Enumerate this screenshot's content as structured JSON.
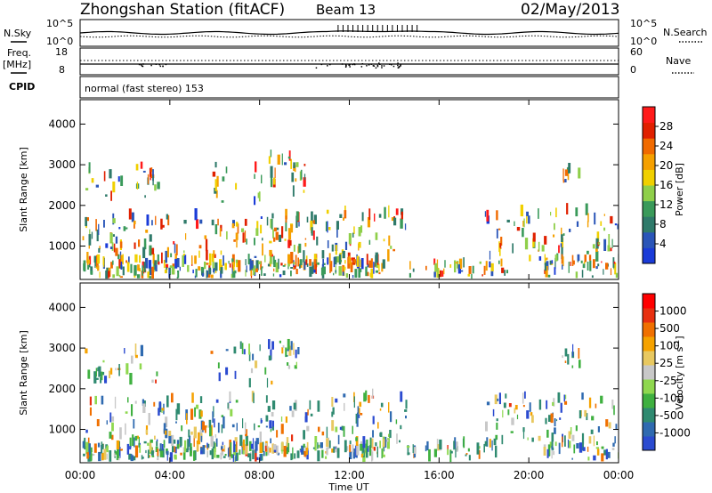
{
  "header": {
    "station": "Zhongshan Station (fitACF)",
    "beam": "Beam 13",
    "date": "02/May/2013"
  },
  "sky_panel": {
    "left_label": "N.Sky",
    "left_ticks": [
      "10^5",
      "10^0"
    ],
    "right_label": "N.Search",
    "right_ticks": [
      "10^5",
      "10^0"
    ]
  },
  "freq_panel": {
    "left_label_1": "Freq.",
    "left_label_2": "[MHz]",
    "left_ticks": [
      "18",
      "8"
    ],
    "right_label": "Nave",
    "right_ticks": [
      "60",
      "0"
    ]
  },
  "cpid": {
    "label": "CPID",
    "value": "normal (fast stereo) 153"
  },
  "colors": {
    "power_scale": [
      "#1a3bd8",
      "#2a55b8",
      "#2f7a6a",
      "#3a9a5a",
      "#8fcf4a",
      "#f0d000",
      "#f5a000",
      "#f06a00",
      "#e02000",
      "#ff1a1a"
    ],
    "velocity_scale": [
      "#2b4bd0",
      "#2f6ab0",
      "#2f8a70",
      "#3fb040",
      "#8fd84f",
      "#c8c8c8",
      "#e8c860",
      "#f5a200",
      "#f07000",
      "#e83010",
      "#ff0000"
    ]
  },
  "chart_data": [
    {
      "type": "heatmap",
      "name": "power",
      "ylabel": "Slant Range [km]",
      "yticks": [
        1000,
        2000,
        3000,
        4000
      ],
      "ylim": [
        180,
        4600
      ],
      "xlim": [
        0,
        24
      ],
      "colorbar_label": "Power [dB]",
      "colorbar_ticks": [
        "4",
        "8",
        "12",
        "16",
        "20",
        "24",
        "28"
      ],
      "colorbar_range": [
        0,
        32
      ]
    },
    {
      "type": "heatmap",
      "name": "velocity",
      "ylabel": "Slant Range [km]",
      "yticks": [
        1000,
        2000,
        3000,
        4000
      ],
      "ylim": [
        180,
        4600
      ],
      "xlim": [
        0,
        24
      ],
      "colorbar_label": "Velocity [m s^-1]",
      "colorbar_ticks": [
        "-1000",
        "-500",
        "-100",
        "-25",
        "25",
        "100",
        "500",
        "1000"
      ],
      "xlabel": "Time UT",
      "xticks": [
        "00:00",
        "04:00",
        "08:00",
        "12:00",
        "16:00",
        "20:00",
        "00:00"
      ]
    }
  ]
}
